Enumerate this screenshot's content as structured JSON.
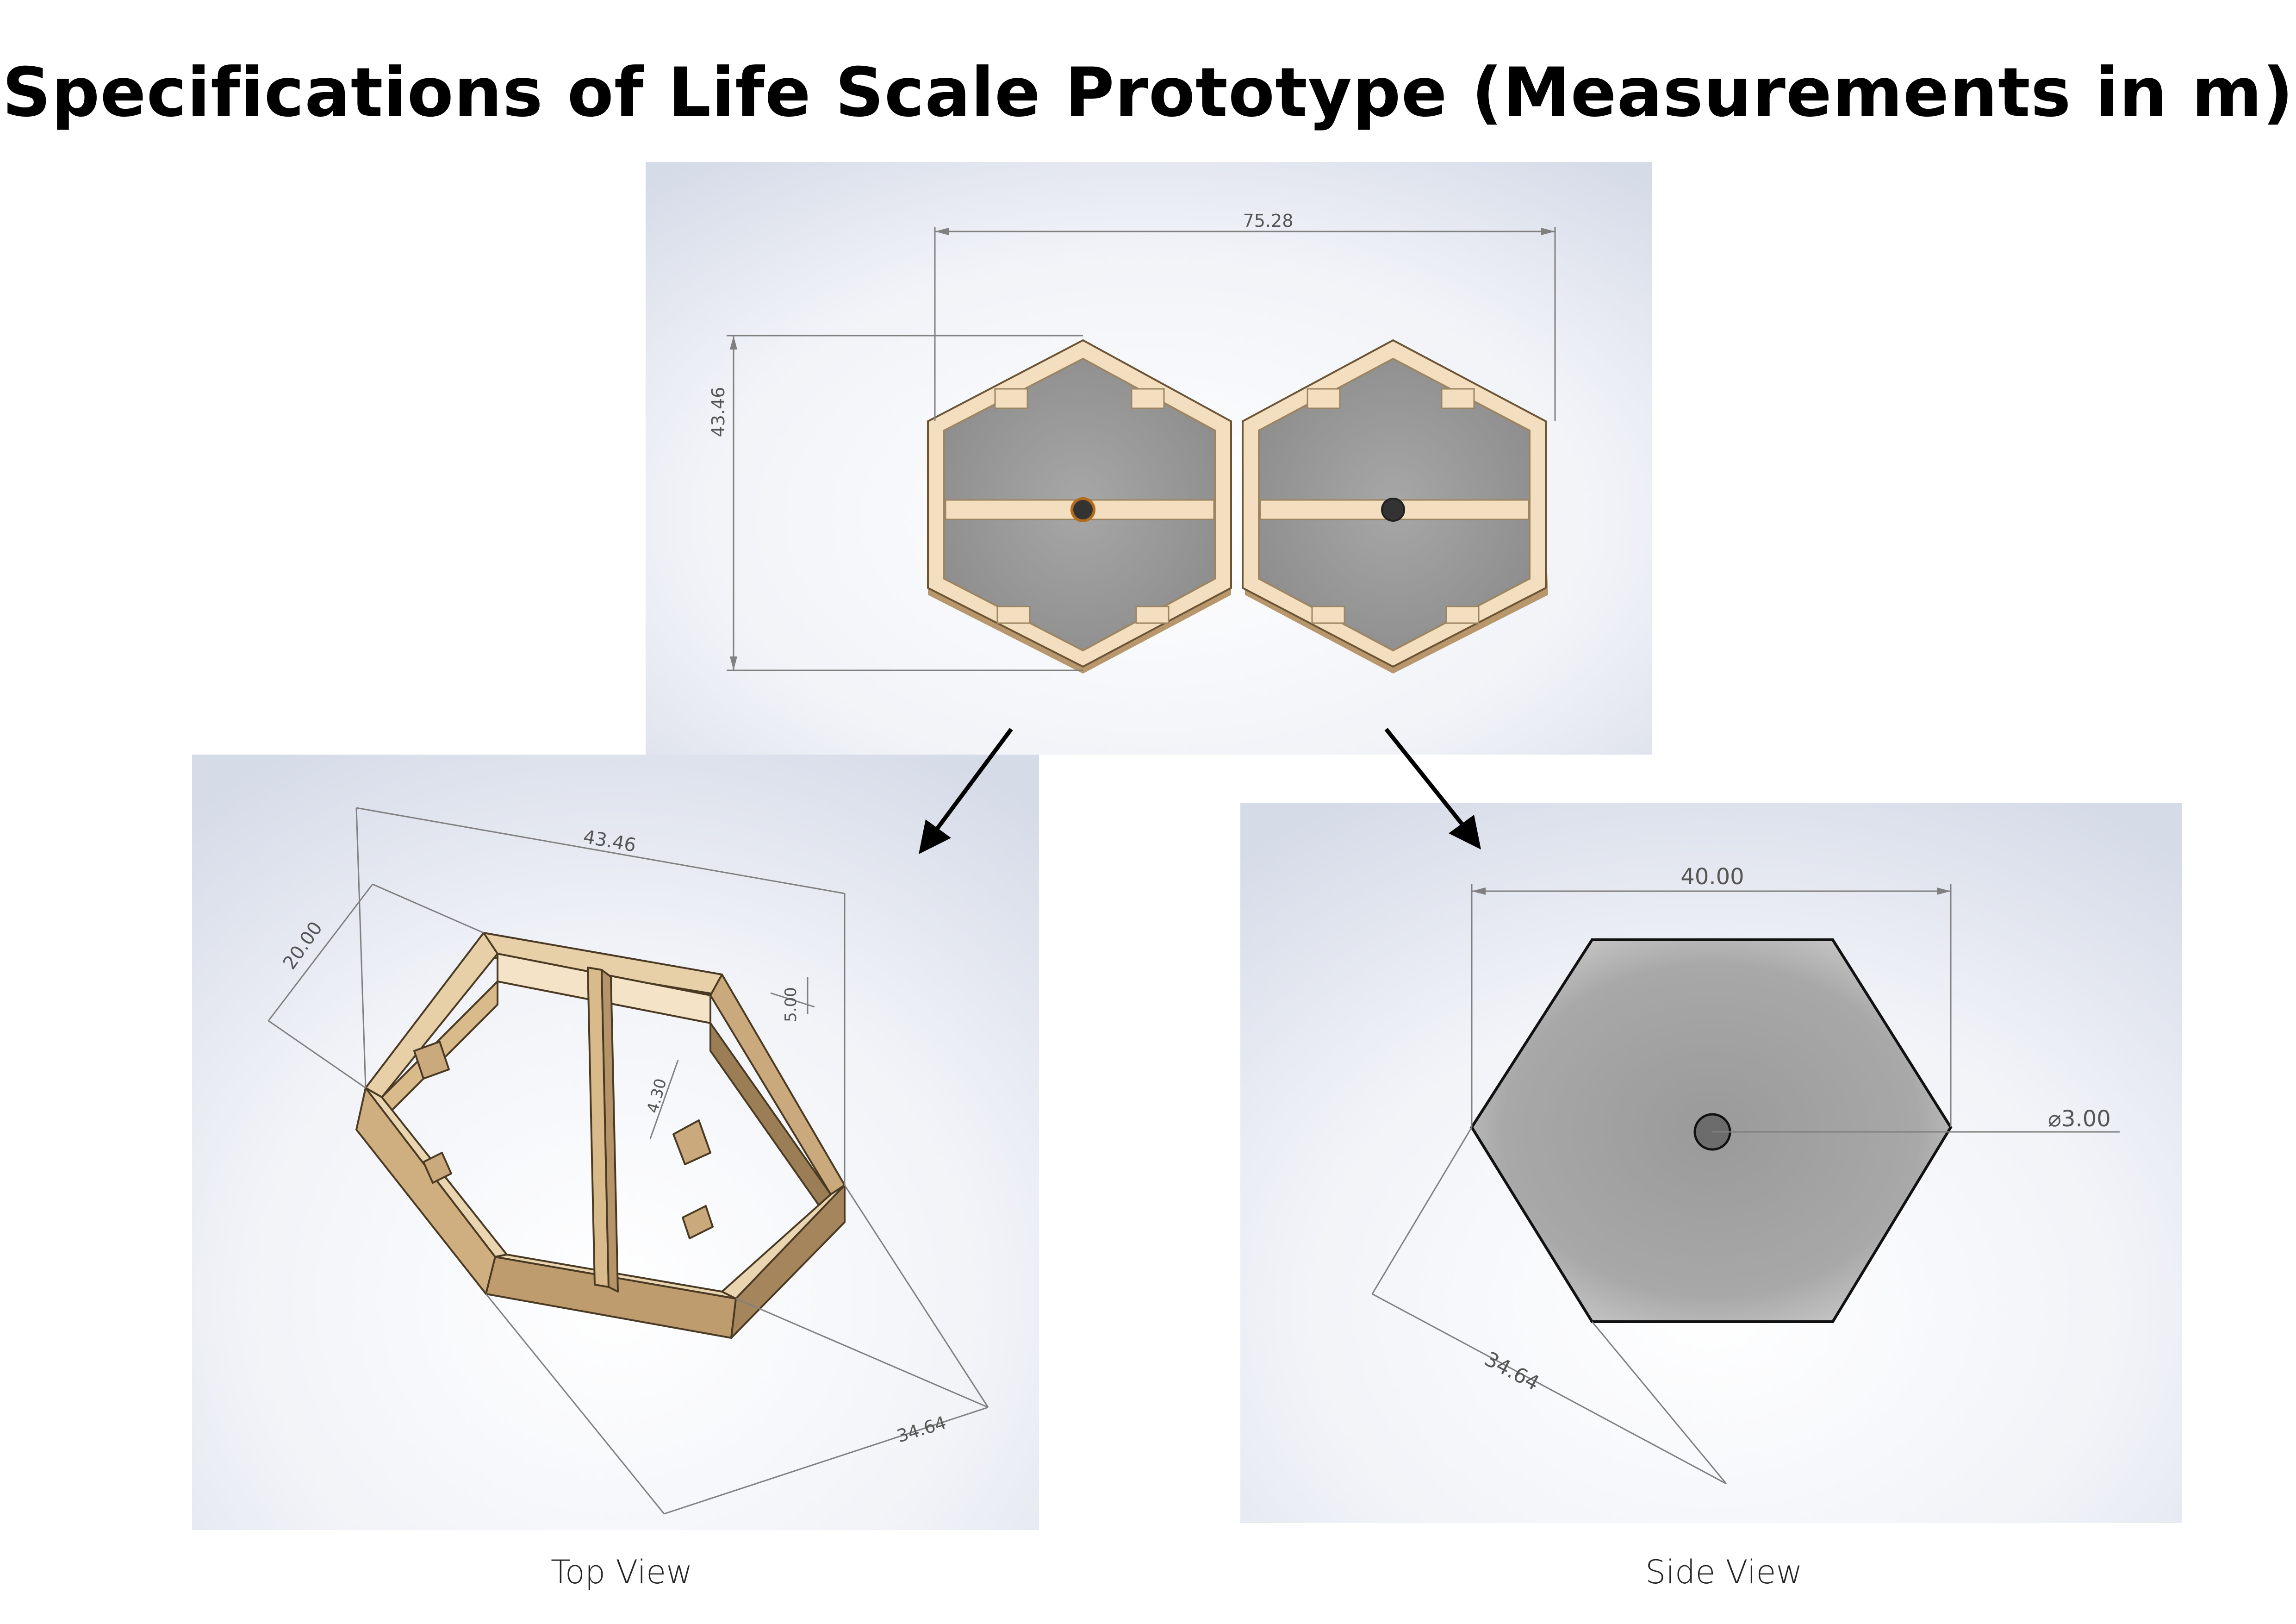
{
  "title": "Specifications of Life Scale Prototype (Measurements in m)",
  "colors": {
    "wood_light": "#f3dfbf",
    "wood_mid": "#d9bb8c",
    "wood_dark": "#b3946a",
    "gray_fill": "#8f8f8f",
    "dim_line": "#808080"
  },
  "top_panel": {
    "width_dim": "75.28",
    "height_dim": "43.46"
  },
  "left_panel": {
    "dim_length": "43.46",
    "dim_width": "20.00",
    "dim_depth": "5.00",
    "dim_inner": "4.30",
    "dim_side": "34.64",
    "caption": "Top View"
  },
  "right_panel": {
    "dim_width": "40.00",
    "dim_diameter": "⌀3.00",
    "dim_side": "34.64",
    "caption": "Side View"
  }
}
